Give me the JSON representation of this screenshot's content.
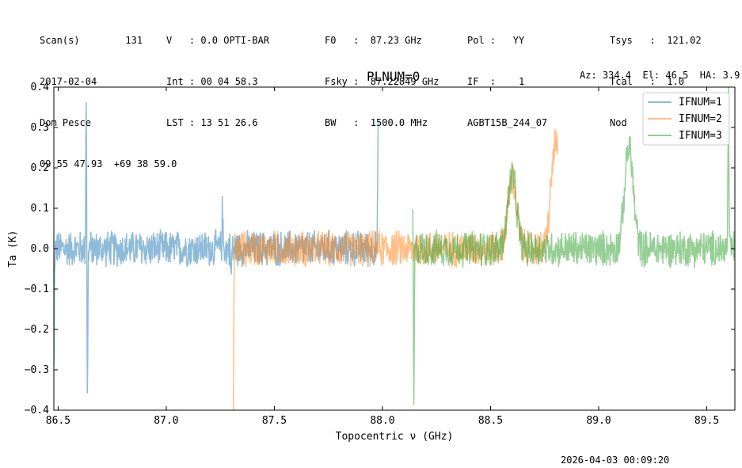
{
  "header": {
    "col1": [
      "Scan(s)        131",
      "2017-02-04",
      "Dom Pesce",
      "09 55 47.93  +69 38 59.0"
    ],
    "col2": [
      "V   : 0.0 OPTI-BAR",
      "Int : 00 04 58.3",
      "LST : 13 51 26.6"
    ],
    "col3": [
      "F0   :  87.23 GHz",
      "Fsky :  87.22849 GHz",
      "BW   :  1500.0 MHz"
    ],
    "col4": [
      "Pol :   YY",
      "IF  :    1",
      "AGBT15B_244_07"
    ],
    "col5": [
      "Tsys   :  121.02",
      "Tcal   :  1.0",
      "Nod"
    ],
    "azel": "Az: 334.4  El: 46.5  HA: 3.9"
  },
  "footer": {
    "timestamp": "2026-04-03 00:09:20"
  },
  "chart_data": {
    "type": "line",
    "title": "PLNUM=0",
    "xlabel": "Topocentric ν (GHz)",
    "ylabel": "Ta (K)",
    "xlim": [
      86.48,
      89.63
    ],
    "ylim": [
      -0.4,
      0.4
    ],
    "xticks": [
      "86.5",
      "87.0",
      "87.5",
      "88.0",
      "88.5",
      "89.0",
      "89.5"
    ],
    "yticks": [
      "−0.4",
      "−0.3",
      "−0.2",
      "−0.1",
      "0.0",
      "0.1",
      "0.2",
      "0.3",
      "0.4"
    ],
    "legend_position": "top-right",
    "series": [
      {
        "name": "IFNUM=1",
        "color": "#1f77b4",
        "x_range": [
          86.48,
          87.98
        ],
        "noise": 0.05,
        "features": [
          [
            86.48,
            -0.3
          ],
          [
            86.49,
            0.0
          ],
          [
            86.63,
            0.4
          ],
          [
            86.635,
            -0.4
          ],
          [
            87.26,
            0.1
          ],
          [
            87.3,
            -0.07
          ],
          [
            87.98,
            0.28
          ]
        ]
      },
      {
        "name": "IFNUM=2",
        "color": "#ff7f0e",
        "x_range": [
          87.31,
          88.81
        ],
        "noise": 0.05,
        "features": [
          [
            87.31,
            -0.4
          ],
          [
            87.35,
            0.0
          ],
          [
            88.6,
            0.17
          ],
          [
            88.8,
            0.26
          ]
        ]
      },
      {
        "name": "IFNUM=3",
        "color": "#2ca02c",
        "x_range": [
          88.14,
          89.63
        ],
        "noise": 0.05,
        "features": [
          [
            88.14,
            0.13
          ],
          [
            88.145,
            -0.4
          ],
          [
            88.6,
            0.18
          ],
          [
            89.14,
            0.25
          ],
          [
            89.6,
            0.4
          ]
        ]
      }
    ]
  }
}
